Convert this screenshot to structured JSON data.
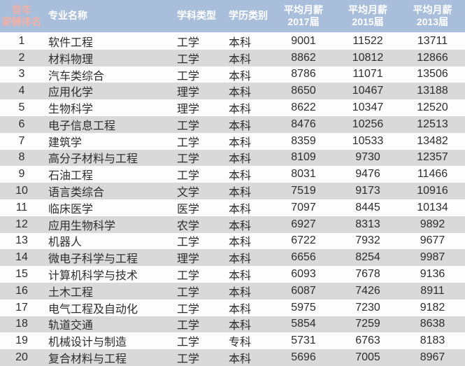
{
  "colors": {
    "header_bg": "#a9bedb",
    "header_text": "#ffffff",
    "rank_header_text": "#edb0a8",
    "stripe_gray": "#d9d9d9",
    "stripe_white": "#fdfdfd",
    "body_text": "#2d2d2d"
  },
  "chart_data": {
    "type": "table",
    "columns": [
      "首年薪酬排名",
      "专业名称",
      "学科类型",
      "学历类别",
      "平均月薪2017届",
      "平均月薪2015届",
      "平均月薪2013届"
    ],
    "header_lines": {
      "rank": [
        "首年",
        "薪酬排名"
      ],
      "major": "专业名称",
      "discipline": "学科类型",
      "degree": "学历类别",
      "salary": [
        [
          "平均月薪",
          "2017届"
        ],
        [
          "平均月薪",
          "2015届"
        ],
        [
          "平均月薪",
          "2013届"
        ]
      ]
    },
    "rows": [
      [
        1,
        "软件工程",
        "工学",
        "本科",
        9001,
        11522,
        13711
      ],
      [
        2,
        "材料物理",
        "工学",
        "本科",
        8862,
        10812,
        12866
      ],
      [
        3,
        "汽车类综合",
        "工学",
        "本科",
        8786,
        11071,
        13506
      ],
      [
        4,
        "应用化学",
        "理学",
        "本科",
        8650,
        10467,
        13188
      ],
      [
        5,
        "生物科学",
        "理学",
        "本科",
        8622,
        10347,
        12520
      ],
      [
        6,
        "电子信息工程",
        "工学",
        "本科",
        8476,
        10256,
        12513
      ],
      [
        7,
        "建筑学",
        "工学",
        "本科",
        8359,
        10533,
        13482
      ],
      [
        8,
        "高分子材料与工程",
        "工学",
        "本科",
        8109,
        9730,
        12357
      ],
      [
        9,
        "石油工程",
        "工学",
        "本科",
        8031,
        9476,
        11466
      ],
      [
        10,
        "语言类综合",
        "文学",
        "本科",
        7519,
        9173,
        10916
      ],
      [
        11,
        "临床医学",
        "医学",
        "本科",
        7097,
        8445,
        10134
      ],
      [
        12,
        "应用生物科学",
        "农学",
        "本科",
        6927,
        8313,
        9892
      ],
      [
        13,
        "机器人",
        "工学",
        "本科",
        6722,
        7932,
        9677
      ],
      [
        14,
        "微电子科学与工程",
        "理学",
        "本科",
        6656,
        8254,
        9987
      ],
      [
        15,
        "计算机科学与技术",
        "工学",
        "本科",
        6093,
        7678,
        9136
      ],
      [
        16,
        "土木工程",
        "工学",
        "本科",
        6087,
        7426,
        8911
      ],
      [
        17,
        "电气工程及自动化",
        "工学",
        "本科",
        5975,
        7230,
        9182
      ],
      [
        18,
        "轨道交通",
        "工学",
        "本科",
        5854,
        7259,
        8638
      ],
      [
        19,
        "机械设计与制造",
        "工学",
        "专科",
        5731,
        6763,
        8183
      ],
      [
        20,
        "复合材料与工程",
        "工学",
        "本科",
        5696,
        7005,
        8967
      ]
    ]
  }
}
